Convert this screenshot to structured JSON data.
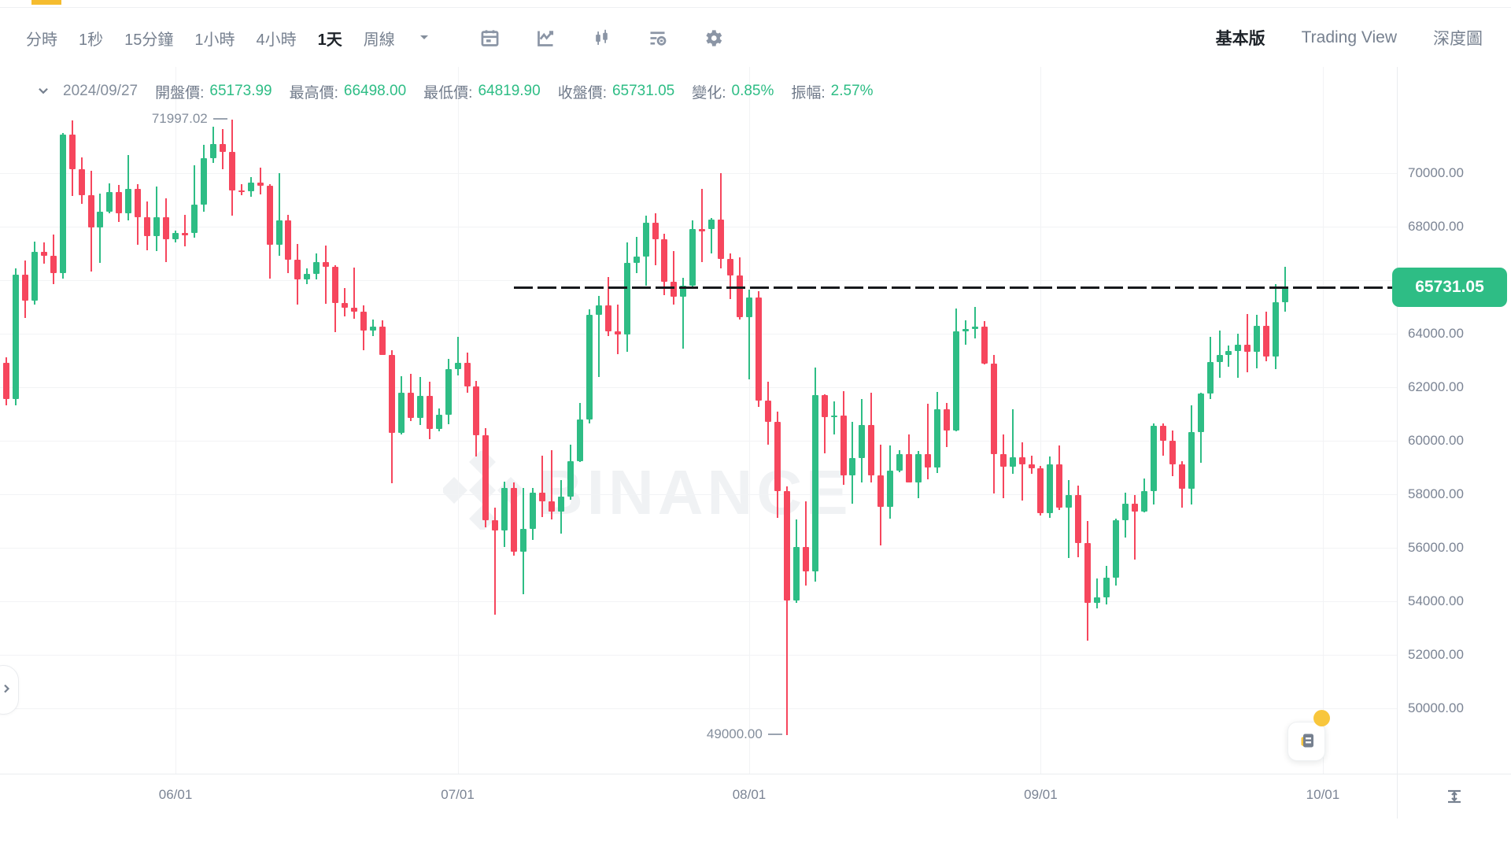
{
  "toolbar": {
    "intervals": [
      {
        "label": "分時",
        "active": false
      },
      {
        "label": "1秒",
        "active": false
      },
      {
        "label": "15分鐘",
        "active": false
      },
      {
        "label": "1小時",
        "active": false
      },
      {
        "label": "4小時",
        "active": false
      },
      {
        "label": "1天",
        "active": true
      },
      {
        "label": "周線",
        "active": false
      }
    ],
    "interval_more_icon": "chevron-down-icon",
    "icons": [
      "calendar-icon",
      "line-chart-icon",
      "candlestick-icon",
      "indicators-icon",
      "settings-gear-icon"
    ],
    "views": [
      {
        "label": "基本版",
        "active": true
      },
      {
        "label": "Trading View",
        "active": false
      },
      {
        "label": "深度圖",
        "active": false
      }
    ]
  },
  "info_bar": {
    "collapse_icon": "chevron-down-icon",
    "date": "2024/09/27",
    "fields": [
      {
        "label": "開盤價:",
        "value": "65173.99"
      },
      {
        "label": "最高價:",
        "value": "66498.00"
      },
      {
        "label": "最低價:",
        "value": "64819.90"
      },
      {
        "label": "收盤價:",
        "value": "65731.05"
      },
      {
        "label": "變化:",
        "value": "0.85%"
      },
      {
        "label": "振幅:",
        "value": "2.57%"
      }
    ]
  },
  "colors": {
    "up": "#2EBD85",
    "down": "#F6465D",
    "badge": "#2EBD85",
    "accent_yellow": "#F5BC2F",
    "text_dark": "#1E2329",
    "text_gray": "#76808F"
  },
  "chart_data": {
    "type": "candlestick",
    "symbol_watermark": "BINANCE",
    "y_axis": {
      "grid_values": [
        70000,
        68000,
        66000,
        64000,
        62000,
        60000,
        58000,
        56000,
        54000,
        52000,
        50000
      ],
      "labels": [
        {
          "label": "70000.00",
          "value": 70000
        },
        {
          "label": "68000.00",
          "value": 68000
        },
        {
          "label": "64000.00",
          "value": 64000
        },
        {
          "label": "62000.00",
          "value": 62000
        },
        {
          "label": "60000.00",
          "value": 60000
        },
        {
          "label": "58000.00",
          "value": 58000
        },
        {
          "label": "56000.00",
          "value": 56000
        },
        {
          "label": "54000.00",
          "value": 54000
        },
        {
          "label": "52000.00",
          "value": 52000
        },
        {
          "label": "50000.00",
          "value": 50000
        }
      ]
    },
    "x_axis": {
      "ticks": [
        {
          "label": "06/01",
          "index": 19
        },
        {
          "label": "07/01",
          "index": 49
        },
        {
          "label": "08/01",
          "index": 80
        },
        {
          "label": "09/01",
          "index": 111
        },
        {
          "label": "10/01",
          "index": 141
        }
      ]
    },
    "price_line": {
      "value": 65731.05,
      "label": "65731.05",
      "start_index": 55
    },
    "annotations": [
      {
        "text": "71997.02",
        "price": 71997.02,
        "index": 25
      },
      {
        "text": "49000.00",
        "price": 49000,
        "index": 84
      }
    ],
    "candles": [
      [
        "05/13",
        61450,
        63440,
        60750,
        62900
      ],
      [
        "05/14",
        62900,
        63120,
        61330,
        61560
      ],
      [
        "05/15",
        61560,
        66440,
        61330,
        66210
      ],
      [
        "05/16",
        66210,
        66750,
        64600,
        65230
      ],
      [
        "05/17",
        65230,
        67450,
        65100,
        67050
      ],
      [
        "05/18",
        67050,
        67400,
        66610,
        66910
      ],
      [
        "05/19",
        66910,
        67700,
        65850,
        66270
      ],
      [
        "05/20",
        66270,
        71500,
        66060,
        71440
      ],
      [
        "05/21",
        71440,
        71980,
        69160,
        70150
      ],
      [
        "05/22",
        70150,
        70600,
        68840,
        69180
      ],
      [
        "05/23",
        69180,
        70080,
        66310,
        67970
      ],
      [
        "05/24",
        67970,
        69250,
        66640,
        68550
      ],
      [
        "05/25",
        68550,
        69620,
        68500,
        69290
      ],
      [
        "05/26",
        69290,
        69560,
        68180,
        68510
      ],
      [
        "05/27",
        68510,
        70690,
        68230,
        69420
      ],
      [
        "05/28",
        69420,
        69600,
        67330,
        68360
      ],
      [
        "05/29",
        68360,
        68950,
        67120,
        67640
      ],
      [
        "05/30",
        67640,
        69500,
        67100,
        68350
      ],
      [
        "05/31",
        68350,
        69050,
        66670,
        67530
      ],
      [
        "06/01",
        67530,
        67850,
        67400,
        67760
      ],
      [
        "06/02",
        67760,
        68450,
        67250,
        67750
      ],
      [
        "06/03",
        67750,
        70290,
        67600,
        68810
      ],
      [
        "06/04",
        68810,
        71050,
        68560,
        70570
      ],
      [
        "06/05",
        70570,
        71750,
        70380,
        71100
      ],
      [
        "06/06",
        71100,
        71660,
        70150,
        70790
      ],
      [
        "06/07",
        70790,
        71997,
        68420,
        69360
      ],
      [
        "06/08",
        69360,
        69590,
        69180,
        69310
      ],
      [
        "06/09",
        69310,
        69850,
        69120,
        69650
      ],
      [
        "06/10",
        69650,
        70200,
        69200,
        69540
      ],
      [
        "06/11",
        69540,
        69590,
        66050,
        67310
      ],
      [
        "06/12",
        67310,
        69990,
        66900,
        68250
      ],
      [
        "06/13",
        68250,
        68440,
        66250,
        66770
      ],
      [
        "06/14",
        66770,
        67350,
        65100,
        66040
      ],
      [
        "06/15",
        66040,
        66430,
        65850,
        66230
      ],
      [
        "06/16",
        66230,
        66990,
        66020,
        66680
      ],
      [
        "06/17",
        66680,
        67290,
        65130,
        66510
      ],
      [
        "06/18",
        66510,
        66570,
        64060,
        65140
      ],
      [
        "06/19",
        65140,
        65720,
        64660,
        64960
      ],
      [
        "06/20",
        64960,
        66480,
        64550,
        64830
      ],
      [
        "06/21",
        64830,
        65050,
        63380,
        64130
      ],
      [
        "06/22",
        64130,
        64540,
        63920,
        64260
      ],
      [
        "06/23",
        64260,
        64500,
        63210,
        63210
      ],
      [
        "06/24",
        63210,
        63370,
        58400,
        60280
      ],
      [
        "06/25",
        60280,
        62420,
        60230,
        61800
      ],
      [
        "06/26",
        61800,
        62490,
        60730,
        60850
      ],
      [
        "06/27",
        60850,
        62380,
        60600,
        61680
      ],
      [
        "06/28",
        61680,
        62200,
        60060,
        60430
      ],
      [
        "06/29",
        60430,
        61220,
        60360,
        60970
      ],
      [
        "06/30",
        60970,
        63060,
        60620,
        62680
      ],
      [
        "07/01",
        62680,
        63870,
        62450,
        62900
      ],
      [
        "07/02",
        62900,
        63290,
        61800,
        62030
      ],
      [
        "07/03",
        62030,
        62230,
        59400,
        60200
      ],
      [
        "07/04",
        60200,
        60480,
        56770,
        57040
      ],
      [
        "07/05",
        57040,
        57500,
        53500,
        56660
      ],
      [
        "07/06",
        56660,
        58480,
        56040,
        58240
      ],
      [
        "07/07",
        58240,
        58450,
        55720,
        55850
      ],
      [
        "07/08",
        55850,
        58240,
        54260,
        56700
      ],
      [
        "07/09",
        56700,
        58250,
        56280,
        58050
      ],
      [
        "07/10",
        58050,
        59450,
        57160,
        57740
      ],
      [
        "07/11",
        57740,
        59650,
        57060,
        57340
      ],
      [
        "07/12",
        57340,
        58530,
        56540,
        57900
      ],
      [
        "07/13",
        57900,
        59850,
        57780,
        59230
      ],
      [
        "07/14",
        59230,
        61400,
        59200,
        60800
      ],
      [
        "07/15",
        60800,
        64900,
        60660,
        64720
      ],
      [
        "07/16",
        64720,
        65400,
        62370,
        65050
      ],
      [
        "07/17",
        65050,
        66130,
        63900,
        64090
      ],
      [
        "07/18",
        64090,
        65100,
        63240,
        63970
      ],
      [
        "07/19",
        63970,
        67400,
        63330,
        66660
      ],
      [
        "07/20",
        66660,
        67620,
        66250,
        66880
      ],
      [
        "07/21",
        66880,
        68400,
        65800,
        68150
      ],
      [
        "07/22",
        68150,
        68490,
        66550,
        67530
      ],
      [
        "07/23",
        67530,
        67750,
        65450,
        65930
      ],
      [
        "07/24",
        65930,
        67100,
        65100,
        65370
      ],
      [
        "07/25",
        65370,
        66100,
        63450,
        65780
      ],
      [
        "07/26",
        65780,
        68250,
        65720,
        67910
      ],
      [
        "07/27",
        67910,
        69400,
        66670,
        67900
      ],
      [
        "07/28",
        67900,
        68320,
        67000,
        68260
      ],
      [
        "07/29",
        68260,
        69990,
        66450,
        66780
      ],
      [
        "07/30",
        66780,
        67000,
        65300,
        66190
      ],
      [
        "07/31",
        66190,
        66840,
        64530,
        64630
      ],
      [
        "08/01",
        64630,
        65660,
        62300,
        65350
      ],
      [
        "08/02",
        65350,
        65600,
        61250,
        61500
      ],
      [
        "08/03",
        61500,
        62200,
        59850,
        60700
      ],
      [
        "08/04",
        60700,
        61100,
        57120,
        58120
      ],
      [
        "08/05",
        58120,
        58280,
        49000,
        54020
      ],
      [
        "08/06",
        54020,
        57050,
        53950,
        56030
      ],
      [
        "08/07",
        56030,
        57740,
        54590,
        55130
      ],
      [
        "08/08",
        55130,
        62750,
        54730,
        61710
      ],
      [
        "08/09",
        61710,
        61740,
        59540,
        60880
      ],
      [
        "08/10",
        60880,
        61480,
        60240,
        60950
      ],
      [
        "08/11",
        60950,
        61860,
        58350,
        58720
      ],
      [
        "08/12",
        58720,
        60700,
        57640,
        59350
      ],
      [
        "08/13",
        59350,
        61560,
        58450,
        60600
      ],
      [
        "08/14",
        60600,
        61790,
        58430,
        58710
      ],
      [
        "08/15",
        58710,
        59850,
        56080,
        57540
      ],
      [
        "08/16",
        57540,
        59820,
        57100,
        58880
      ],
      [
        "08/17",
        58880,
        59650,
        58820,
        59490
      ],
      [
        "08/18",
        59490,
        60250,
        58440,
        58450
      ],
      [
        "08/19",
        58450,
        59610,
        57840,
        59490
      ],
      [
        "08/20",
        59490,
        61390,
        58560,
        59010
      ],
      [
        "08/21",
        59010,
        61820,
        58790,
        61170
      ],
      [
        "08/22",
        61170,
        61400,
        59770,
        60380
      ],
      [
        "08/23",
        60380,
        64950,
        60340,
        64090
      ],
      [
        "08/24",
        64090,
        64500,
        63580,
        64170
      ],
      [
        "08/25",
        64170,
        65000,
        63830,
        64270
      ],
      [
        "08/26",
        64270,
        64480,
        62850,
        62880
      ],
      [
        "08/27",
        62880,
        63210,
        58030,
        59500
      ],
      [
        "08/28",
        59500,
        60230,
        57860,
        59030
      ],
      [
        "08/29",
        59030,
        61180,
        58760,
        59390
      ],
      [
        "08/30",
        59390,
        59940,
        57760,
        59120
      ],
      [
        "08/31",
        59120,
        59450,
        58760,
        58970
      ],
      [
        "09/01",
        58970,
        59070,
        57210,
        57300
      ],
      [
        "09/02",
        57300,
        59400,
        57130,
        59130
      ],
      [
        "09/03",
        59130,
        59820,
        57420,
        57490
      ],
      [
        "09/04",
        57490,
        58520,
        55610,
        57970
      ],
      [
        "09/05",
        57970,
        58330,
        55640,
        56180
      ],
      [
        "09/06",
        56180,
        57010,
        52530,
        53950
      ],
      [
        "09/07",
        53950,
        54850,
        53740,
        54160
      ],
      [
        "09/08",
        54160,
        55320,
        53880,
        54870
      ],
      [
        "09/09",
        54870,
        57100,
        54600,
        57040
      ],
      [
        "09/10",
        57040,
        58050,
        56390,
        57640
      ],
      [
        "09/11",
        57640,
        57980,
        55550,
        57340
      ],
      [
        "09/12",
        57340,
        58590,
        57330,
        58130
      ],
      [
        "09/13",
        58130,
        60650,
        57630,
        60570
      ],
      [
        "09/14",
        60570,
        60660,
        59430,
        60010
      ],
      [
        "09/15",
        60010,
        60390,
        58690,
        59130
      ],
      [
        "09/16",
        59130,
        59230,
        57490,
        58210
      ],
      [
        "09/17",
        58210,
        61320,
        57610,
        60310
      ],
      [
        "09/18",
        60310,
        61790,
        59180,
        61760
      ],
      [
        "09/19",
        61760,
        63880,
        61550,
        62940
      ],
      [
        "09/20",
        62940,
        64130,
        62350,
        63200
      ],
      [
        "09/21",
        63200,
        63560,
        62760,
        63350
      ],
      [
        "09/22",
        63350,
        64000,
        62360,
        63580
      ],
      [
        "09/23",
        63580,
        64750,
        62550,
        63330
      ],
      [
        "09/24",
        63330,
        64700,
        62700,
        64300
      ],
      [
        "09/25",
        64300,
        64820,
        62970,
        63150
      ],
      [
        "09/26",
        63150,
        65840,
        62670,
        65170
      ],
      [
        "09/27",
        65173.99,
        66498.0,
        64819.9,
        65731.05
      ]
    ]
  }
}
